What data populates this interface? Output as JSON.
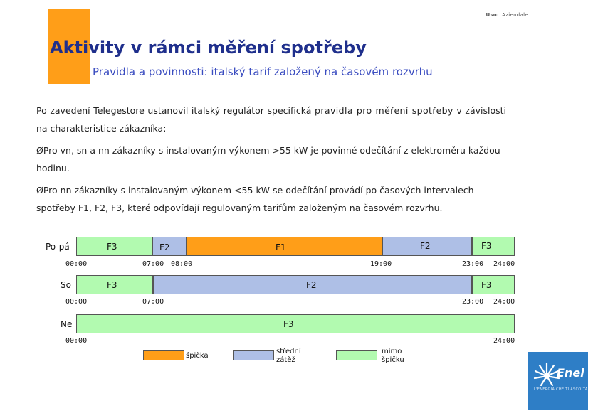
{
  "header": {
    "usage_label": "Uso:",
    "usage_value": "Aziendale",
    "title": "Aktivity v rámci měření spotřeby",
    "subtitle": "Pravidla a povinnosti: italský tarif založený na časovém rozvrhu"
  },
  "body": {
    "p1_a": "Po zavedení Telegestore ustanovil italský regulátor specifická ",
    "p1_b": "pravidla pro měření spotřeby",
    "p1_c": " v závislosti na charakteristice zákazníka:",
    "bullet_symbol": "Ø",
    "p2_a": "Pro vn, sn a nn zákazníky s instalovaným výkonem >55 kW ",
    "p2_b": "je povinné odečítání z elektroměru každou hodinu.",
    "p3_a": "Pro nn zákazníky s instalovaným výkonem <55 kW ",
    "p3_b": "se odečítání provádí po časových intervalech spotřeby F1, F2, F3, které odpovídají regulovaným tarifům založeným na časovém rozvrhu."
  },
  "schedule": {
    "weekday": {
      "day": "Po-pá",
      "segments": [
        "F3",
        "F2",
        "F1",
        "F2",
        "F3"
      ],
      "times": [
        "00:00",
        "07:00",
        "08:00",
        "19:00",
        "23:00",
        "24:00"
      ]
    },
    "saturday": {
      "day": "So",
      "segments": [
        "F3",
        "F2",
        "F3"
      ],
      "times": [
        "00:00",
        "07:00",
        "23:00",
        "24:00"
      ]
    },
    "sunday": {
      "day": "Ne",
      "segments": [
        "F3"
      ],
      "times": [
        "00:00",
        "24:00"
      ]
    }
  },
  "legend": {
    "peak": "špička",
    "mid": "střední zátěž",
    "offpeak": "mimo špičku"
  },
  "colors": {
    "peak": "#ff9e18",
    "mid": "#aebfe6",
    "offpeak": "#b2fab0",
    "title": "#1f2f8c",
    "subtitle": "#3a4cc0",
    "logo": "#2e7ec6"
  },
  "logo": {
    "name": "Enel",
    "tagline": "L'ENERGIA CHE TI ASCOLTA."
  }
}
